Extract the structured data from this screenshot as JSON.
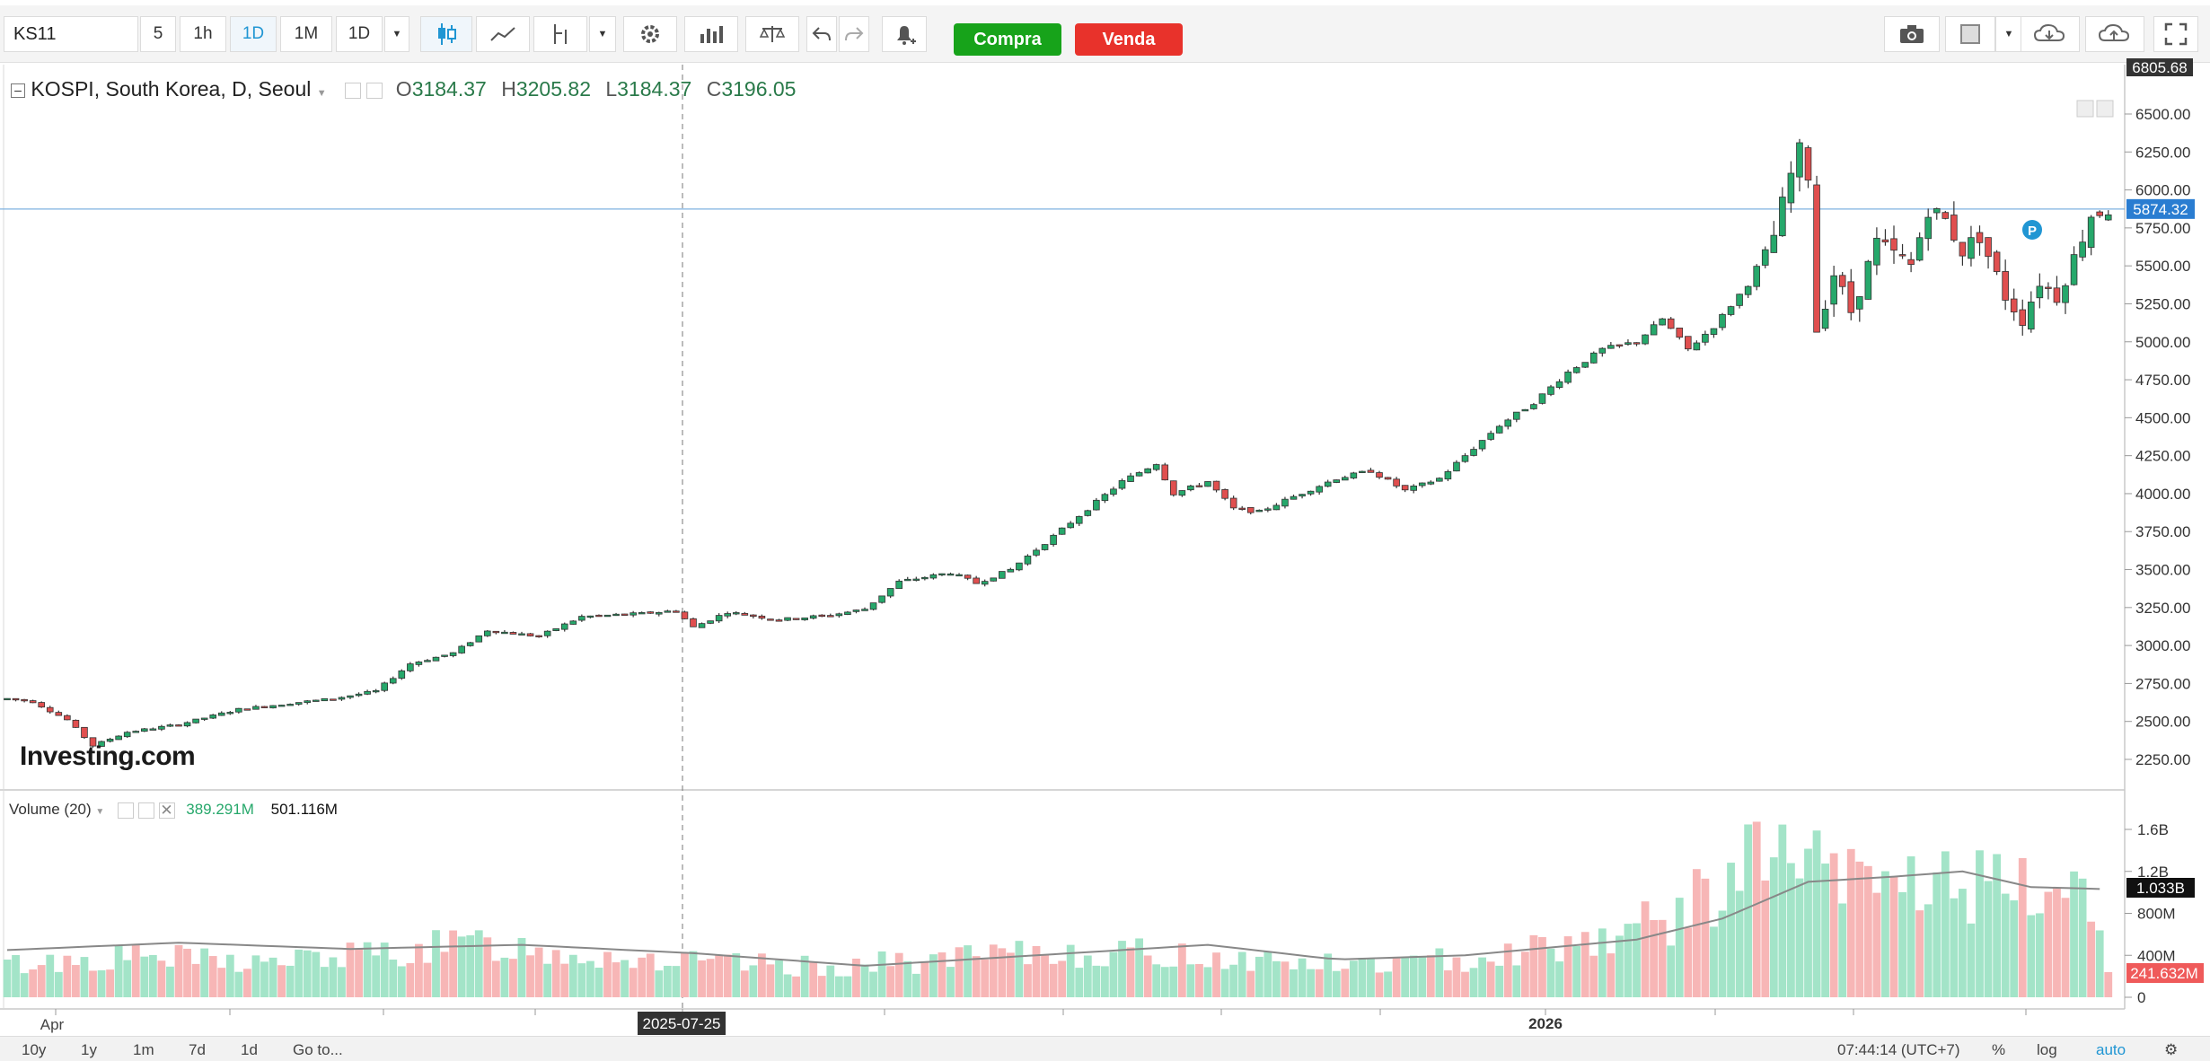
{
  "toolbar": {
    "symbol": "KS11",
    "intervals": [
      "5",
      "1h",
      "1D",
      "1M",
      "1D"
    ],
    "selected_interval": "1D",
    "buy_label": "Compra",
    "sell_label": "Venda",
    "buy_color": "#17a31a",
    "sell_color": "#e8322b"
  },
  "header": {
    "title": "KOSPI, South Korea, D, Seoul",
    "open_label": "O",
    "open": "3184.37",
    "high_label": "H",
    "high": "3205.82",
    "low_label": "L",
    "low": "3184.37",
    "close_label": "C",
    "close": "3196.05"
  },
  "volume_header": {
    "label": "Volume (20)",
    "volume": "389.291M",
    "ma": "501.116M"
  },
  "watermark": "Investing.com",
  "price_badges": {
    "top": "6805.68",
    "current": "5874.32",
    "volume_ma": "1.033B",
    "volume_last": "241.632M"
  },
  "crosshair_date": "2025-07-25",
  "x_labels": [
    "Apr",
    "2026"
  ],
  "bottom": {
    "ranges": [
      "10y",
      "1y",
      "1m",
      "7d",
      "1d"
    ],
    "goto": "Go to...",
    "time": "07:44:14 (UTC+7)",
    "percent": "%",
    "log": "log",
    "auto": "auto"
  },
  "colors": {
    "up": "#26a86b",
    "down": "#e04f4f",
    "vol_up": "#a3e4c8",
    "vol_down": "#f7b6b6",
    "accent": "#2196d3"
  },
  "chart_data": {
    "type": "candlestick",
    "title": "KOSPI, South Korea, D, Seoul",
    "price_axis": {
      "ticks": [
        2250,
        2500,
        2750,
        3000,
        3250,
        3500,
        3750,
        4000,
        4250,
        4500,
        4750,
        5000,
        5250,
        5500,
        5750,
        6000,
        6250,
        6500
      ],
      "ylim": [
        2100,
        6810
      ]
    },
    "volume_axis": {
      "ticks": [
        "0",
        "400M",
        "800M",
        "1.2B",
        "1.6B"
      ],
      "ylim": [
        0,
        1.8
      ]
    },
    "close_series_anchors": [
      [
        0,
        2650
      ],
      [
        3,
        2630
      ],
      [
        7,
        2510
      ],
      [
        10,
        2340
      ],
      [
        14,
        2430
      ],
      [
        20,
        2480
      ],
      [
        27,
        2580
      ],
      [
        33,
        2620
      ],
      [
        38,
        2650
      ],
      [
        43,
        2700
      ],
      [
        47,
        2880
      ],
      [
        52,
        2950
      ],
      [
        56,
        3100
      ],
      [
        62,
        3060
      ],
      [
        67,
        3190
      ],
      [
        74,
        3210
      ],
      [
        78,
        3230
      ],
      [
        80,
        3120
      ],
      [
        84,
        3220
      ],
      [
        90,
        3170
      ],
      [
        96,
        3200
      ],
      [
        100,
        3240
      ],
      [
        104,
        3420
      ],
      [
        110,
        3480
      ],
      [
        113,
        3410
      ],
      [
        117,
        3500
      ],
      [
        122,
        3720
      ],
      [
        126,
        3900
      ],
      [
        130,
        4080
      ],
      [
        134,
        4200
      ],
      [
        136,
        4000
      ],
      [
        140,
        4080
      ],
      [
        143,
        3900
      ],
      [
        146,
        3880
      ],
      [
        150,
        3980
      ],
      [
        155,
        4100
      ],
      [
        159,
        4150
      ],
      [
        163,
        4020
      ],
      [
        167,
        4100
      ],
      [
        170,
        4250
      ],
      [
        174,
        4450
      ],
      [
        178,
        4600
      ],
      [
        182,
        4800
      ],
      [
        186,
        4950
      ],
      [
        190,
        5000
      ],
      [
        193,
        5150
      ],
      [
        196,
        4950
      ],
      [
        199,
        5100
      ],
      [
        203,
        5380
      ],
      [
        206,
        5700
      ],
      [
        208,
        6100
      ],
      [
        209,
        6250
      ],
      [
        210,
        6100
      ],
      [
        211,
        5080
      ],
      [
        213,
        5450
      ],
      [
        215,
        5200
      ],
      [
        218,
        5650
      ],
      [
        222,
        5500
      ],
      [
        224,
        5880
      ],
      [
        226,
        5800
      ],
      [
        228,
        5600
      ],
      [
        230,
        5700
      ],
      [
        233,
        5300
      ],
      [
        235,
        5150
      ],
      [
        237,
        5400
      ],
      [
        239,
        5300
      ],
      [
        241,
        5550
      ],
      [
        243,
        5840
      ],
      [
        245,
        5874
      ]
    ],
    "volume_series_anchors": [
      [
        0,
        0.3
      ],
      [
        15,
        0.38
      ],
      [
        30,
        0.32
      ],
      [
        45,
        0.42
      ],
      [
        55,
        0.5
      ],
      [
        65,
        0.42
      ],
      [
        80,
        0.32
      ],
      [
        95,
        0.28
      ],
      [
        110,
        0.35
      ],
      [
        125,
        0.42
      ],
      [
        140,
        0.38
      ],
      [
        155,
        0.3
      ],
      [
        165,
        0.32
      ],
      [
        175,
        0.42
      ],
      [
        185,
        0.55
      ],
      [
        195,
        0.75
      ],
      [
        203,
        1.25
      ],
      [
        208,
        1.35
      ],
      [
        213,
        1.05
      ],
      [
        220,
        1.1
      ],
      [
        228,
        1.05
      ],
      [
        235,
        0.95
      ],
      [
        240,
        1.05
      ],
      [
        244,
        0.95
      ],
      [
        245,
        0.24
      ]
    ],
    "volume_ma_anchors": [
      [
        0,
        0.45
      ],
      [
        20,
        0.52
      ],
      [
        40,
        0.46
      ],
      [
        60,
        0.5
      ],
      [
        80,
        0.42
      ],
      [
        100,
        0.3
      ],
      [
        120,
        0.4
      ],
      [
        140,
        0.5
      ],
      [
        155,
        0.36
      ],
      [
        170,
        0.4
      ],
      [
        190,
        0.55
      ],
      [
        200,
        0.75
      ],
      [
        210,
        1.1
      ],
      [
        220,
        1.15
      ],
      [
        228,
        1.2
      ],
      [
        236,
        1.05
      ],
      [
        245,
        1.03
      ]
    ],
    "x_tick_labels": [
      "Apr",
      "2025-07-25",
      "2026"
    ]
  }
}
